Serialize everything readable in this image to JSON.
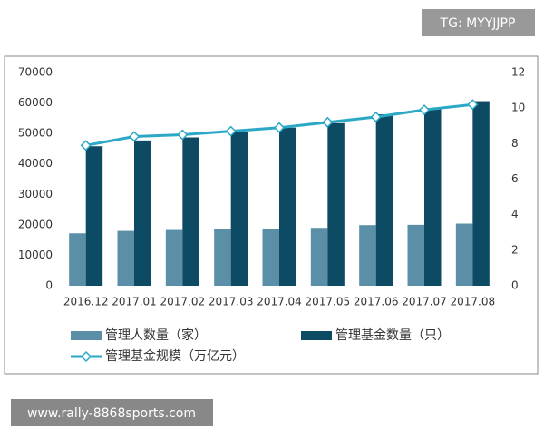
{
  "chart_data": {
    "type": "bar",
    "categories": [
      "2016.12",
      "2017.01",
      "2017.02",
      "2017.03",
      "2017.04",
      "2017.05",
      "2017.06",
      "2017.07",
      "2017.08"
    ],
    "series": [
      {
        "name": "管理人数量（家）",
        "color": "#5b8fa8",
        "values": [
          17200,
          18000,
          18300,
          18700,
          18700,
          19000,
          19900,
          20000,
          20400
        ]
      },
      {
        "name": "管理基金数量（只）",
        "color": "#0d4a63",
        "values": [
          45800,
          47700,
          48700,
          50500,
          51900,
          53400,
          56300,
          58000,
          60600
        ]
      },
      {
        "name": "管理基金规模（万亿元）",
        "color": "#2aa8c6",
        "type": "line",
        "axis": "y2",
        "values": [
          7.9,
          8.4,
          8.5,
          8.7,
          8.9,
          9.2,
          9.5,
          9.9,
          10.2
        ]
      }
    ],
    "ylim": [
      0,
      70000
    ],
    "yticks": [
      0,
      10000,
      20000,
      30000,
      40000,
      50000,
      60000,
      70000
    ],
    "y2lim": [
      0,
      12
    ],
    "y2ticks": [
      0,
      2,
      4,
      6,
      8,
      10,
      12
    ],
    "grid": false,
    "legend": "bottom"
  },
  "overlay": {
    "top_tag": "TG: MYYJJPP",
    "bottom_tag": "www.rally-8868sports.com"
  }
}
